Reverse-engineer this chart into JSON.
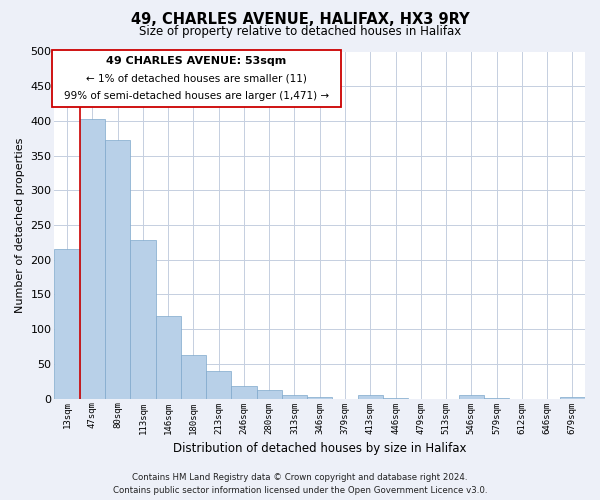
{
  "title": "49, CHARLES AVENUE, HALIFAX, HX3 9RY",
  "subtitle": "Size of property relative to detached houses in Halifax",
  "xlabel": "Distribution of detached houses by size in Halifax",
  "ylabel": "Number of detached properties",
  "bar_color": "#b8d0e8",
  "bar_edge_color": "#7fa8cc",
  "marker_color": "#cc0000",
  "annotation_title": "49 CHARLES AVENUE: 53sqm",
  "annotation_line1": "← 1% of detached houses are smaller (11)",
  "annotation_line2": "99% of semi-detached houses are larger (1,471) →",
  "categories": [
    "13sqm",
    "47sqm",
    "80sqm",
    "113sqm",
    "146sqm",
    "180sqm",
    "213sqm",
    "246sqm",
    "280sqm",
    "313sqm",
    "346sqm",
    "379sqm",
    "413sqm",
    "446sqm",
    "479sqm",
    "513sqm",
    "546sqm",
    "579sqm",
    "612sqm",
    "646sqm",
    "679sqm"
  ],
  "values": [
    215,
    403,
    372,
    228,
    119,
    63,
    40,
    18,
    12,
    5,
    2,
    0,
    5,
    1,
    0,
    0,
    5,
    1,
    0,
    0,
    2
  ],
  "ylim": [
    0,
    500
  ],
  "yticks": [
    0,
    50,
    100,
    150,
    200,
    250,
    300,
    350,
    400,
    450,
    500
  ],
  "footer_line1": "Contains HM Land Registry data © Crown copyright and database right 2024.",
  "footer_line2": "Contains public sector information licensed under the Open Government Licence v3.0.",
  "bg_color": "#edf0f8",
  "plot_bg_color": "#ffffff",
  "grid_color": "#c5cfe0"
}
